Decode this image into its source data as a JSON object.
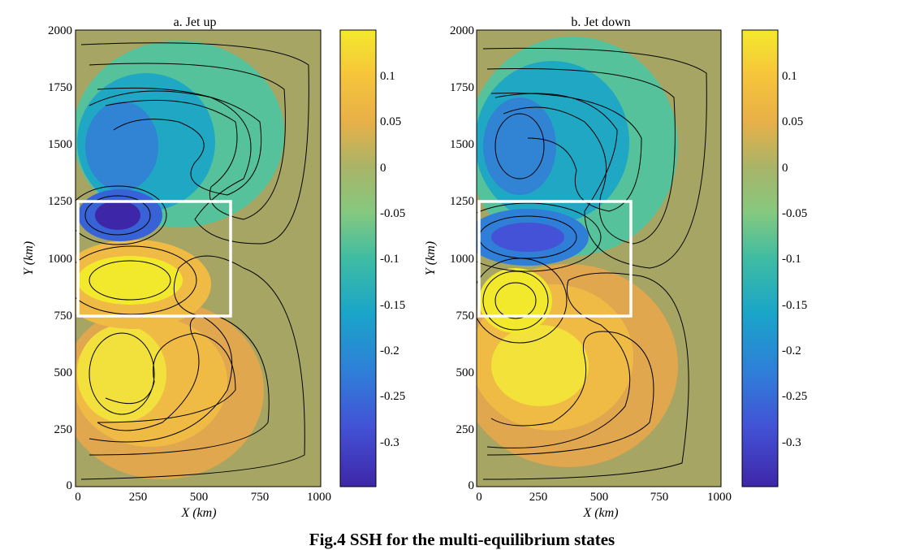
{
  "caption": "Fig.4 SSH for the multi-equilibrium states",
  "chart_data": [
    {
      "type": "heatmap",
      "title": "a. Jet up",
      "xlabel": "X (km)",
      "ylabel": "Y (km)",
      "xlim": [
        0,
        1000
      ],
      "ylim": [
        0,
        2000
      ],
      "xticks": [
        "0",
        "250",
        "500",
        "750",
        "1000"
      ],
      "yticks": [
        "0",
        "250",
        "500",
        "750",
        "1000",
        "1250",
        "1500",
        "1750",
        "2000"
      ],
      "colorbar": {
        "range": [
          -0.35,
          0.15
        ],
        "ticks": [
          "0.1",
          "0.05",
          "0",
          "-0.05",
          "-0.1",
          "-0.15",
          "-0.2",
          "-0.25",
          "-0.3"
        ]
      },
      "features": [
        {
          "kind": "min",
          "x": 160,
          "y": 1190,
          "value": -0.35
        },
        {
          "kind": "min",
          "x": 170,
          "y": 1500,
          "value": -0.2
        },
        {
          "kind": "max",
          "x": 200,
          "y": 910,
          "value": 0.14
        },
        {
          "kind": "max",
          "x": 150,
          "y": 520,
          "value": 0.14
        }
      ],
      "highlight_box": {
        "x": [
          0,
          625
        ],
        "y": [
          740,
          1250
        ]
      }
    },
    {
      "type": "heatmap",
      "title": "b. Jet down",
      "xlabel": "X (km)",
      "ylabel": "Y (km)",
      "xlim": [
        0,
        1000
      ],
      "ylim": [
        0,
        2000
      ],
      "xticks": [
        "0",
        "250",
        "500",
        "750",
        "1000"
      ],
      "yticks": [
        "0",
        "250",
        "500",
        "750",
        "1000",
        "1250",
        "1500",
        "1750",
        "2000"
      ],
      "colorbar": {
        "range": [
          -0.35,
          0.15
        ],
        "ticks": [
          "0.1",
          "0.05",
          "0",
          "-0.05",
          "-0.1",
          "-0.15",
          "-0.2",
          "-0.25",
          "-0.3"
        ]
      },
      "features": [
        {
          "kind": "min",
          "x": 150,
          "y": 1500,
          "value": -0.24
        },
        {
          "kind": "min",
          "x": 200,
          "y": 1090,
          "value": -0.26
        },
        {
          "kind": "max",
          "x": 150,
          "y": 810,
          "value": 0.16
        },
        {
          "kind": "max",
          "x": 200,
          "y": 520,
          "value": 0.12
        }
      ],
      "highlight_box": {
        "x": [
          0,
          625
        ],
        "y": [
          740,
          1250
        ]
      }
    }
  ]
}
